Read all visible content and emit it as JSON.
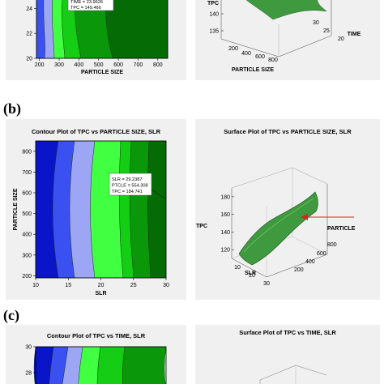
{
  "labels": {
    "b": "(b)",
    "c": "(c)"
  },
  "chart_data": [
    {
      "id": "a-contour",
      "type": "heatmap",
      "subtype": "contour",
      "title": "",
      "xlabel": "PARTICLE SIZE",
      "ylabel": "",
      "xlim": [
        185,
        850
      ],
      "ylim": [
        20,
        25
      ],
      "x_ticks": [
        "200",
        "300",
        "400",
        "500",
        "600",
        "700",
        "800"
      ],
      "y_ticks": [
        "20",
        "22",
        "24"
      ],
      "annotation": [
        "TIME = 23.9626",
        "TPC = 149.466"
      ]
    },
    {
      "id": "a-surface",
      "type": "surface",
      "title": "",
      "zlabel": "TPC",
      "xlabel": "PARTICLE SIZE",
      "ylabel": "TIME",
      "z_ticks": [
        "135",
        "140"
      ],
      "x_ticks": [
        "200",
        "400",
        "600",
        "800"
      ],
      "y_ticks": [
        "20",
        "25",
        "30"
      ]
    },
    {
      "id": "b-contour",
      "type": "heatmap",
      "subtype": "contour",
      "title": "Contour Plot of TPC vs PARTICLE SIZE, SLR",
      "xlabel": "SLR",
      "ylabel": "PARTICLE SIZE",
      "xlim": [
        10,
        30
      ],
      "ylim": [
        190,
        850
      ],
      "x_ticks": [
        "10",
        "15",
        "20",
        "25",
        "30"
      ],
      "y_ticks": [
        "200",
        "300",
        "400",
        "500",
        "600",
        "700",
        "800"
      ],
      "annotation": [
        "SLR = 29.2387",
        "PTCLE = 554.308",
        "TPC = 184.741"
      ]
    },
    {
      "id": "b-surface",
      "type": "surface",
      "title": "Surface Plot of TPC vs PARTICLE SIZE, SLR",
      "zlabel": "TPC",
      "xlabel": "SLR",
      "ylabel": "PARTICLE",
      "z_ticks": [
        "120",
        "140",
        "160",
        "180"
      ],
      "x_ticks": [
        "10",
        "20",
        "30"
      ],
      "y_ticks": [
        "200",
        "400",
        "600",
        "800"
      ]
    },
    {
      "id": "c-contour",
      "type": "heatmap",
      "subtype": "contour",
      "title": "Contour Plot of TPC vs TIME, SLR",
      "xlabel": "",
      "ylabel": "",
      "y_ticks": [
        "28",
        "30"
      ]
    },
    {
      "id": "c-surface",
      "type": "surface",
      "title": "Surface Plot of TPC vs TIME, SLR"
    }
  ],
  "colors": {
    "panel_bg": "#f0f0f0",
    "contour_levels": [
      "#0a14c8",
      "#3a50f0",
      "#9da6f4",
      "#41ff41",
      "#14cd14",
      "#0a980a",
      "#056b05"
    ],
    "surface": "#3f9a3f",
    "arrow": "#e02020"
  }
}
